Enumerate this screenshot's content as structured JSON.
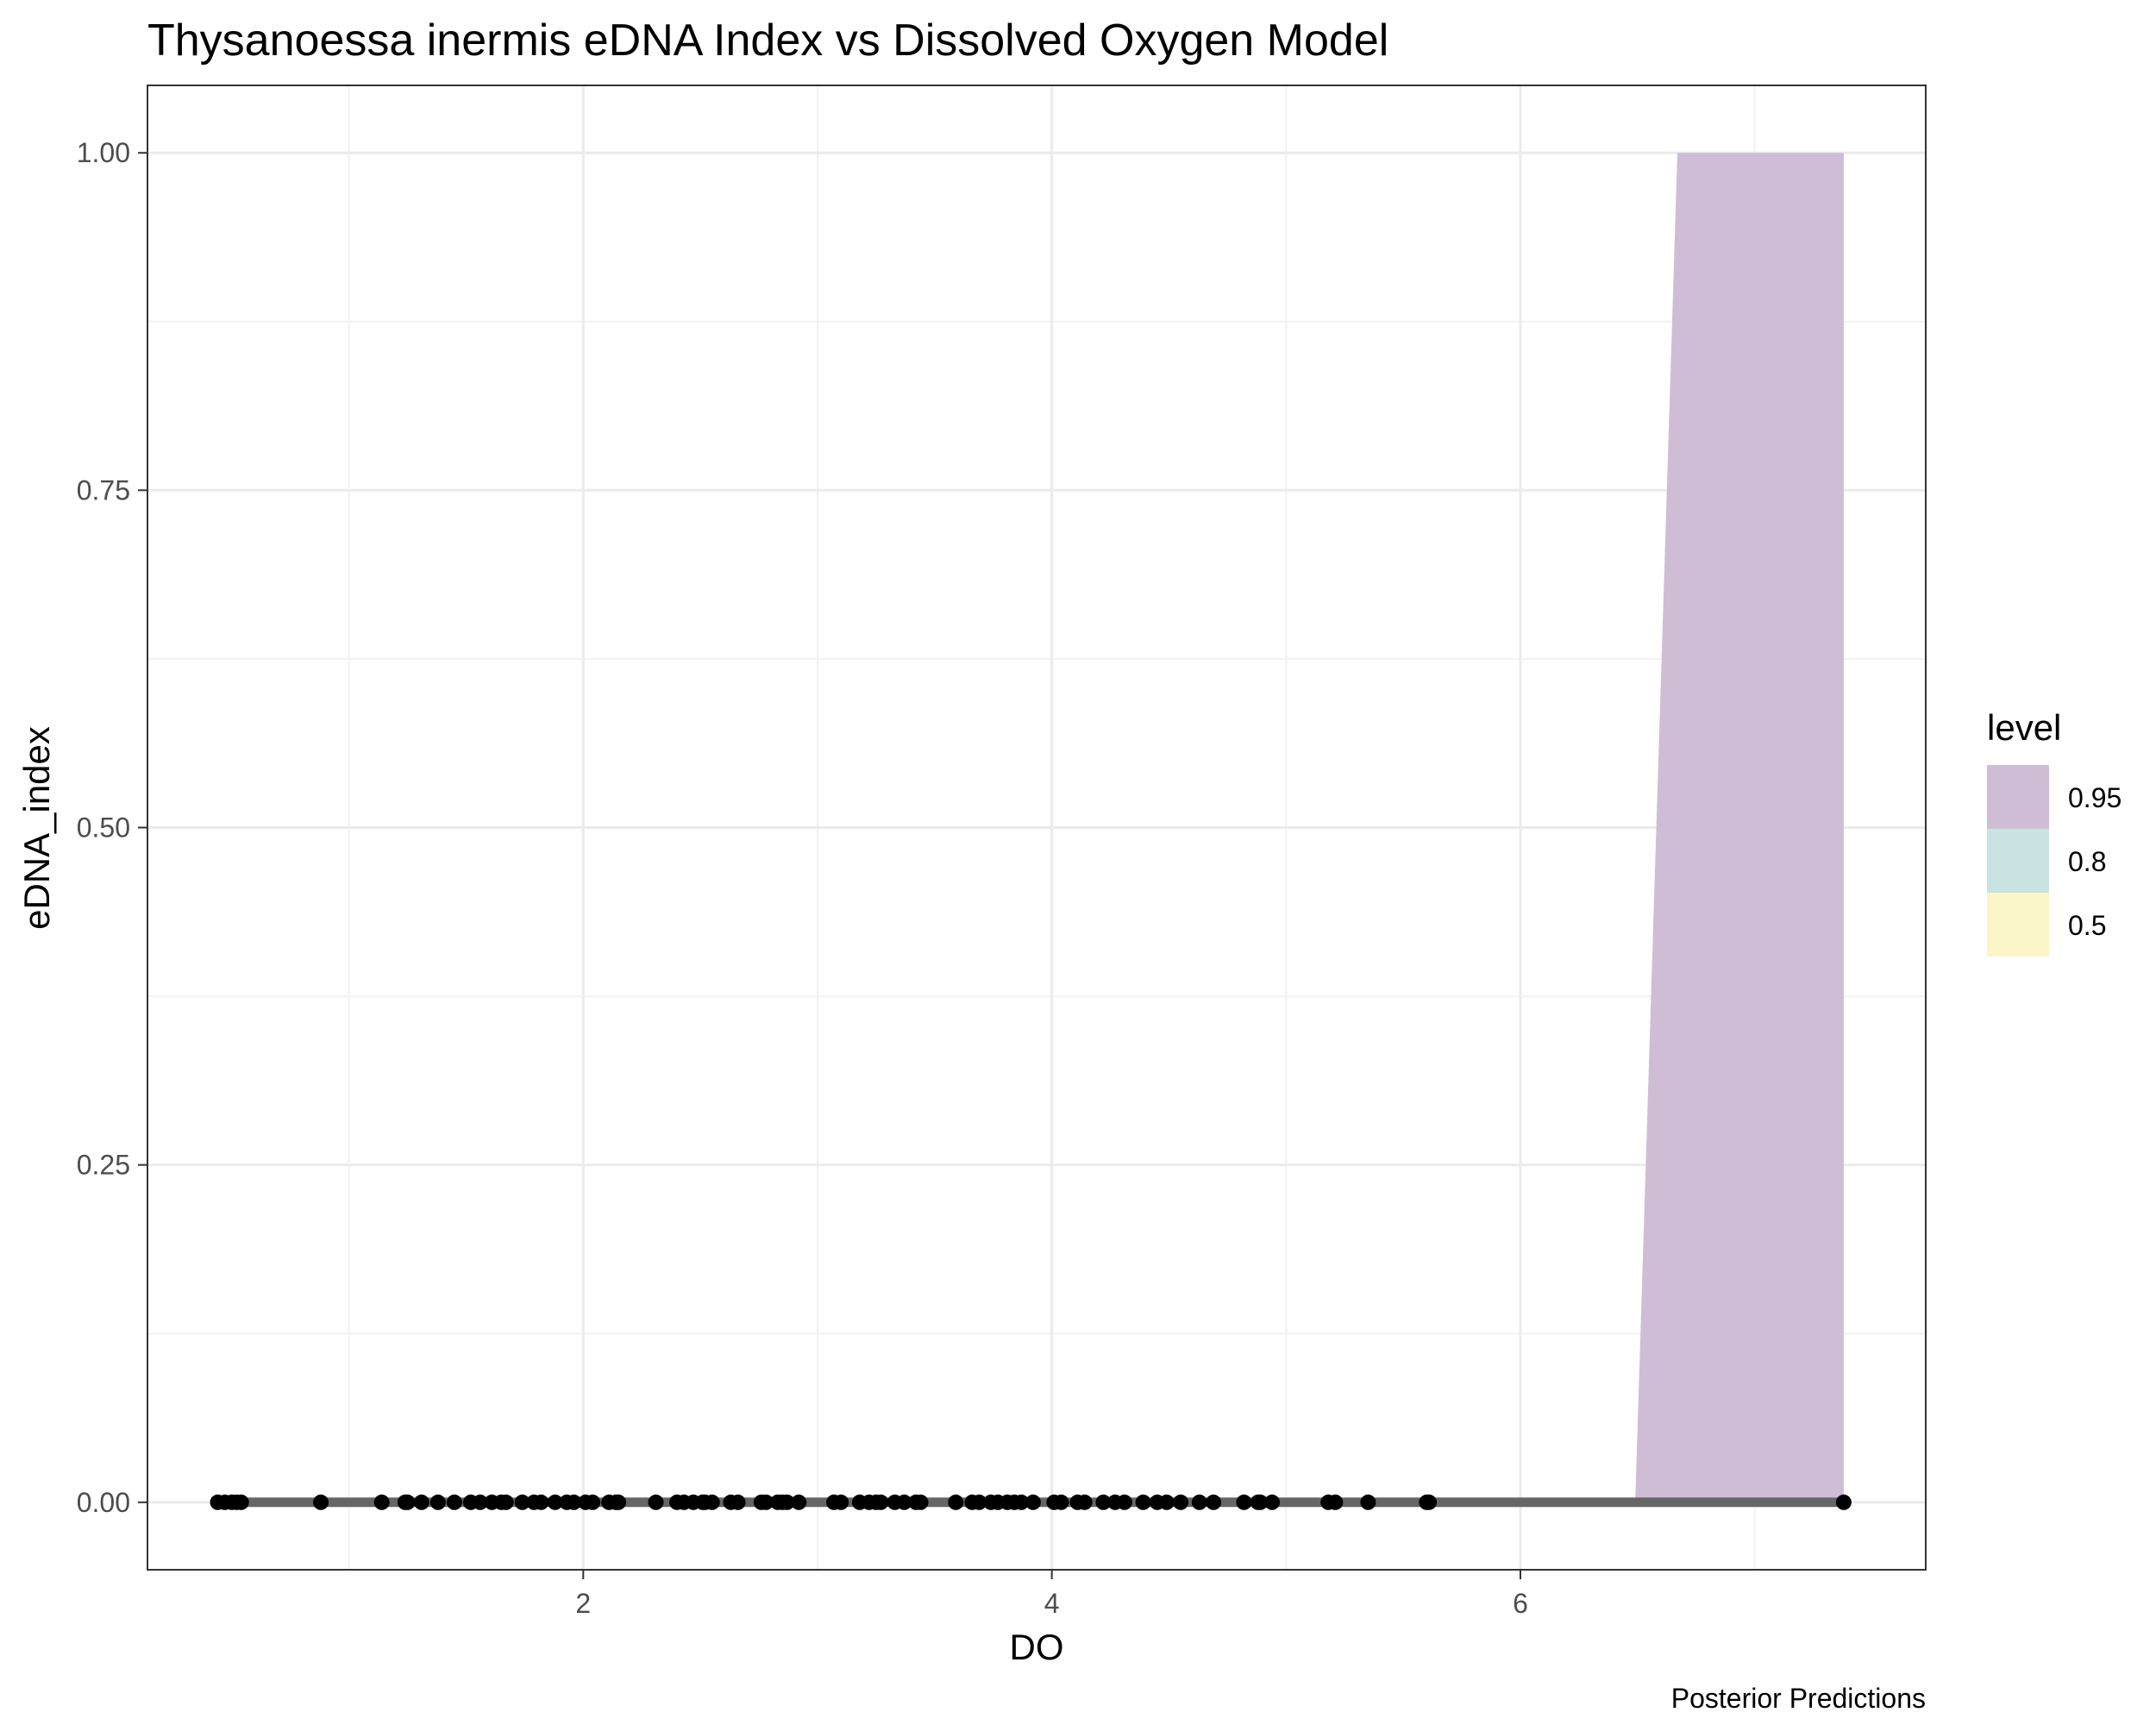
{
  "chart_data": {
    "type": "scatter",
    "title": "Thysanoessa inermis eDNA Index vs Dissolved Oxygen Model",
    "xlabel": "DO",
    "ylabel": "eDNA_index",
    "caption": "Posterior Predictions",
    "xlim": [
      0.14,
      7.73
    ],
    "ylim": [
      -0.05,
      1.05
    ],
    "x_ticks": [
      2,
      4,
      6
    ],
    "x_tick_labels": [
      "2",
      "4",
      "6"
    ],
    "y_ticks": [
      0,
      0.25,
      0.5,
      0.75,
      1
    ],
    "y_tick_labels": [
      "0.00",
      "0.25",
      "0.50",
      "0.75",
      "1.00"
    ],
    "grid": true,
    "legend": {
      "title": "level",
      "position": "right",
      "entries": [
        {
          "label": "0.95",
          "color": "#cfbdd5"
        },
        {
          "label": "0.8",
          "color": "#c8e3e2"
        },
        {
          "label": "0.5",
          "color": "#fbf6c8"
        }
      ]
    },
    "interval_band": {
      "level": "0.95",
      "color": "#cfbdd5",
      "x": [
        6.49,
        6.67,
        7.38
      ],
      "lower": [
        0,
        0,
        0
      ],
      "upper": [
        0,
        1,
        1
      ]
    },
    "median_line": {
      "color": "#666666",
      "x": [
        0.45,
        7.38
      ],
      "y": [
        0,
        0
      ]
    },
    "points": {
      "color": "#000000",
      "x": [
        0.44,
        0.47,
        0.5,
        0.52,
        0.54,
        0.88,
        1.14,
        1.25,
        1.24,
        1.31,
        1.38,
        1.45,
        1.52,
        1.56,
        1.61,
        1.65,
        1.67,
        1.74,
        1.79,
        1.82,
        1.88,
        1.93,
        1.96,
        2.01,
        2.04,
        2.11,
        2.14,
        2.15,
        2.31,
        2.4,
        2.43,
        2.47,
        2.51,
        2.52,
        2.55,
        2.63,
        2.66,
        2.76,
        2.78,
        2.83,
        2.85,
        2.87,
        2.92,
        3.07,
        3.1,
        3.18,
        3.22,
        3.25,
        3.27,
        3.33,
        3.37,
        3.42,
        3.44,
        3.59,
        3.66,
        3.69,
        3.74,
        3.77,
        3.81,
        3.84,
        3.87,
        3.92,
        4.01,
        4.04,
        4.11,
        4.14,
        4.22,
        4.27,
        4.31,
        4.39,
        4.45,
        4.49,
        4.55,
        4.63,
        4.69,
        4.82,
        4.88,
        4.89,
        4.94,
        5.18,
        5.21,
        5.35,
        5.6,
        5.61,
        7.38
      ],
      "y": [
        0,
        0,
        0,
        0,
        0,
        0,
        0,
        0,
        0,
        0,
        0,
        0,
        0,
        0,
        0,
        0,
        0,
        0,
        0,
        0,
        0,
        0,
        0,
        0,
        0,
        0,
        0,
        0,
        0,
        0,
        0,
        0,
        0,
        0,
        0,
        0,
        0,
        0,
        0,
        0,
        0,
        0,
        0,
        0,
        0,
        0,
        0,
        0,
        0,
        0,
        0,
        0,
        0,
        0,
        0,
        0,
        0,
        0,
        0,
        0,
        0,
        0,
        0,
        0,
        0,
        0,
        0,
        0,
        0,
        0,
        0,
        0,
        0,
        0,
        0,
        0,
        0,
        0,
        0,
        0,
        0,
        0,
        0,
        0,
        0
      ]
    }
  }
}
